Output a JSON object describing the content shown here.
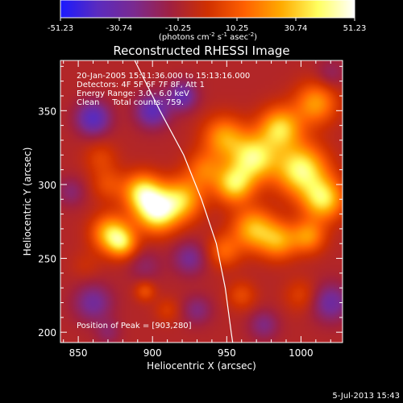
{
  "colorbar": {
    "tick_labels": [
      "-51.23",
      "-30.74",
      "-10.25",
      "10.25",
      "30.74",
      "51.23"
    ],
    "range": [
      -51.23,
      51.23
    ],
    "units_prefix": "(photons cm",
    "units_sup1": "-2",
    "units_mid": " s",
    "units_sup2": "-1",
    "units_mid2": " asec",
    "units_sup3": "-2",
    "units_suffix": ")",
    "colors": [
      "#1a1aff",
      "#5a2bbf",
      "#7a2a90",
      "#a02040",
      "#d03000",
      "#ff6000",
      "#ffaa00",
      "#ffff60",
      "#ffffff"
    ]
  },
  "plot": {
    "title": "Reconstructed RHESSI Image",
    "info_lines": [
      "20-Jan-2005 15:11:36.000 to 15:13:16.000",
      "Detectors: 4F 5F 6F 7F 8F, Att 1",
      "Energy Range: 3.0 - 6.0 keV",
      "Clean     Total counts: 759."
    ],
    "peak_label": "Position of Peak = [903,280]",
    "timestamp": "5-Jul-2013 15:43"
  },
  "chart_data": {
    "type": "heatmap",
    "title": "Reconstructed RHESSI Image",
    "xlabel": "Heliocentric X (arcsec)",
    "ylabel": "Heliocentric Y (arcsec)",
    "xlim": [
      838,
      1028
    ],
    "ylim": [
      193,
      384
    ],
    "xticks": [
      850,
      900,
      950,
      1000
    ],
    "yticks": [
      200,
      250,
      300,
      350
    ],
    "peak": [
      903,
      280
    ],
    "value_range": [
      -51.23,
      51.23
    ],
    "limb_curve": [
      [
        888,
        384
      ],
      [
        905,
        350
      ],
      [
        921,
        320
      ],
      [
        933,
        290
      ],
      [
        943,
        260
      ],
      [
        949,
        230
      ],
      [
        953,
        200
      ],
      [
        954,
        193
      ]
    ],
    "sources": [
      {
        "x": 903,
        "y": 282,
        "r": 10,
        "v": 51
      },
      {
        "x": 893,
        "y": 295,
        "r": 9,
        "v": 40
      },
      {
        "x": 920,
        "y": 290,
        "r": 10,
        "v": 35
      },
      {
        "x": 872,
        "y": 267,
        "r": 9,
        "v": 38
      },
      {
        "x": 880,
        "y": 260,
        "r": 7,
        "v": 28
      },
      {
        "x": 870,
        "y": 300,
        "r": 8,
        "v": 14
      },
      {
        "x": 865,
        "y": 318,
        "r": 8,
        "v": 12
      },
      {
        "x": 948,
        "y": 332,
        "r": 10,
        "v": 30
      },
      {
        "x": 955,
        "y": 300,
        "r": 9,
        "v": 40
      },
      {
        "x": 968,
        "y": 318,
        "r": 11,
        "v": 46
      },
      {
        "x": 986,
        "y": 338,
        "r": 10,
        "v": 40
      },
      {
        "x": 1000,
        "y": 310,
        "r": 12,
        "v": 48
      },
      {
        "x": 1015,
        "y": 290,
        "r": 10,
        "v": 42
      },
      {
        "x": 1010,
        "y": 355,
        "r": 10,
        "v": 30
      },
      {
        "x": 968,
        "y": 270,
        "r": 10,
        "v": 35
      },
      {
        "x": 985,
        "y": 262,
        "r": 9,
        "v": 30
      },
      {
        "x": 948,
        "y": 255,
        "r": 8,
        "v": 20
      },
      {
        "x": 1005,
        "y": 265,
        "r": 8,
        "v": 28
      },
      {
        "x": 935,
        "y": 310,
        "r": 9,
        "v": 22
      },
      {
        "x": 960,
        "y": 225,
        "r": 7,
        "v": 14
      },
      {
        "x": 1000,
        "y": 225,
        "r": 8,
        "v": 12
      },
      {
        "x": 895,
        "y": 228,
        "r": 5,
        "v": 16
      },
      {
        "x": 910,
        "y": 215,
        "r": 6,
        "v": 10
      },
      {
        "x": 855,
        "y": 245,
        "r": 7,
        "v": 6
      },
      {
        "x": 860,
        "y": 345,
        "r": 8,
        "v": -30
      },
      {
        "x": 900,
        "y": 350,
        "r": 8,
        "v": -28
      },
      {
        "x": 920,
        "y": 360,
        "r": 7,
        "v": -25
      },
      {
        "x": 860,
        "y": 220,
        "r": 9,
        "v": -20
      },
      {
        "x": 845,
        "y": 295,
        "r": 7,
        "v": -12
      },
      {
        "x": 895,
        "y": 245,
        "r": 8,
        "v": -10
      },
      {
        "x": 925,
        "y": 250,
        "r": 8,
        "v": -18
      },
      {
        "x": 930,
        "y": 215,
        "r": 7,
        "v": -14
      },
      {
        "x": 1020,
        "y": 220,
        "r": 9,
        "v": -22
      },
      {
        "x": 975,
        "y": 205,
        "r": 7,
        "v": -15
      },
      {
        "x": 1020,
        "y": 375,
        "r": 7,
        "v": -10
      },
      {
        "x": 870,
        "y": 200,
        "r": 6,
        "v": -10
      }
    ]
  }
}
